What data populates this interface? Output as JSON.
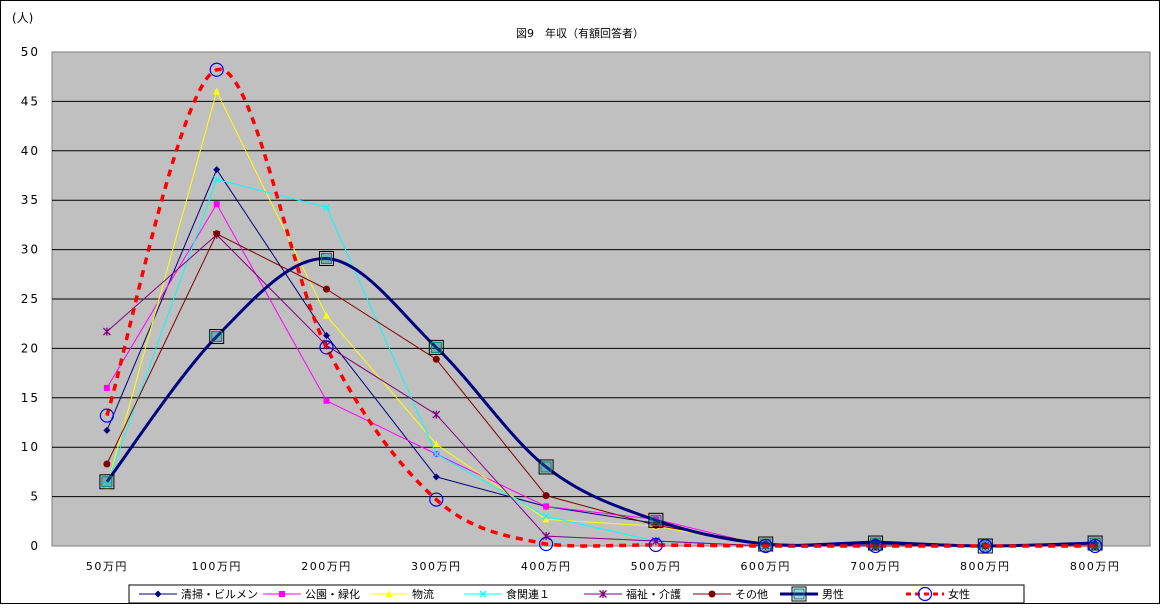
{
  "chart_data": {
    "type": "line",
    "title": "図9　年収（有額回答者）",
    "ylabel": "(人)",
    "xlabel": "",
    "categories": [
      "50万円",
      "100万円",
      "200万円",
      "300万円",
      "400万円",
      "500万円",
      "600万円",
      "700万円",
      "800万円",
      "800万円"
    ],
    "ylim": [
      0,
      50
    ],
    "yticks": [
      0,
      5,
      10,
      15,
      20,
      25,
      30,
      35,
      40,
      45,
      50
    ],
    "grid": true,
    "legend_position": "bottom",
    "series": [
      {
        "name": "清掃・ビルメン",
        "color": "#000080",
        "marker": "diamond",
        "smooth": false,
        "width": 1,
        "dash": "",
        "values": [
          11.7,
          38.1,
          21.3,
          7.0,
          4.0,
          2.3,
          0.0,
          0.5,
          0.0,
          0.3
        ]
      },
      {
        "name": "公園・緑化",
        "color": "#ff00ff",
        "marker": "square",
        "smooth": false,
        "width": 1,
        "dash": "",
        "values": [
          16.0,
          34.6,
          14.7,
          9.3,
          4.0,
          2.7,
          0.0,
          0.0,
          0.0,
          0.0
        ]
      },
      {
        "name": "物流",
        "color": "#ffff00",
        "marker": "triangle",
        "smooth": false,
        "width": 1,
        "dash": "",
        "values": [
          6.0,
          46.0,
          23.3,
          10.3,
          2.7,
          2.0,
          0.0,
          0.0,
          0.0,
          0.0
        ]
      },
      {
        "name": "食関連１",
        "color": "#00ffff",
        "marker": "x",
        "smooth": false,
        "width": 1,
        "dash": "",
        "values": [
          6.2,
          37.1,
          34.3,
          9.3,
          3.0,
          0.5,
          0.0,
          0.0,
          0.0,
          0.0
        ]
      },
      {
        "name": "福祉・介護",
        "color": "#800080",
        "marker": "star",
        "smooth": false,
        "width": 1,
        "dash": "",
        "values": [
          21.7,
          31.5,
          20.3,
          13.3,
          1.0,
          0.5,
          0.0,
          0.0,
          0.0,
          0.0
        ]
      },
      {
        "name": "その他",
        "color": "#800000",
        "marker": "circle",
        "smooth": false,
        "width": 1,
        "dash": "",
        "values": [
          8.3,
          31.6,
          26.0,
          18.9,
          5.1,
          2.1,
          0.2,
          0.0,
          0.0,
          0.0
        ]
      },
      {
        "name": "男性",
        "color": "#000080",
        "marker": "open-square",
        "smooth": true,
        "width": 3,
        "dash": "",
        "values": [
          6.5,
          21.2,
          29.1,
          20.1,
          8.0,
          2.6,
          0.2,
          0.3,
          0.0,
          0.3
        ]
      },
      {
        "name": "女性",
        "color": "#ff0000",
        "marker": "open-circle",
        "smooth": true,
        "width": 3.5,
        "dash": "7 6",
        "values": [
          13.2,
          48.2,
          20.1,
          4.7,
          0.2,
          0.1,
          0.0,
          0.0,
          0.0,
          0.0
        ]
      }
    ]
  }
}
